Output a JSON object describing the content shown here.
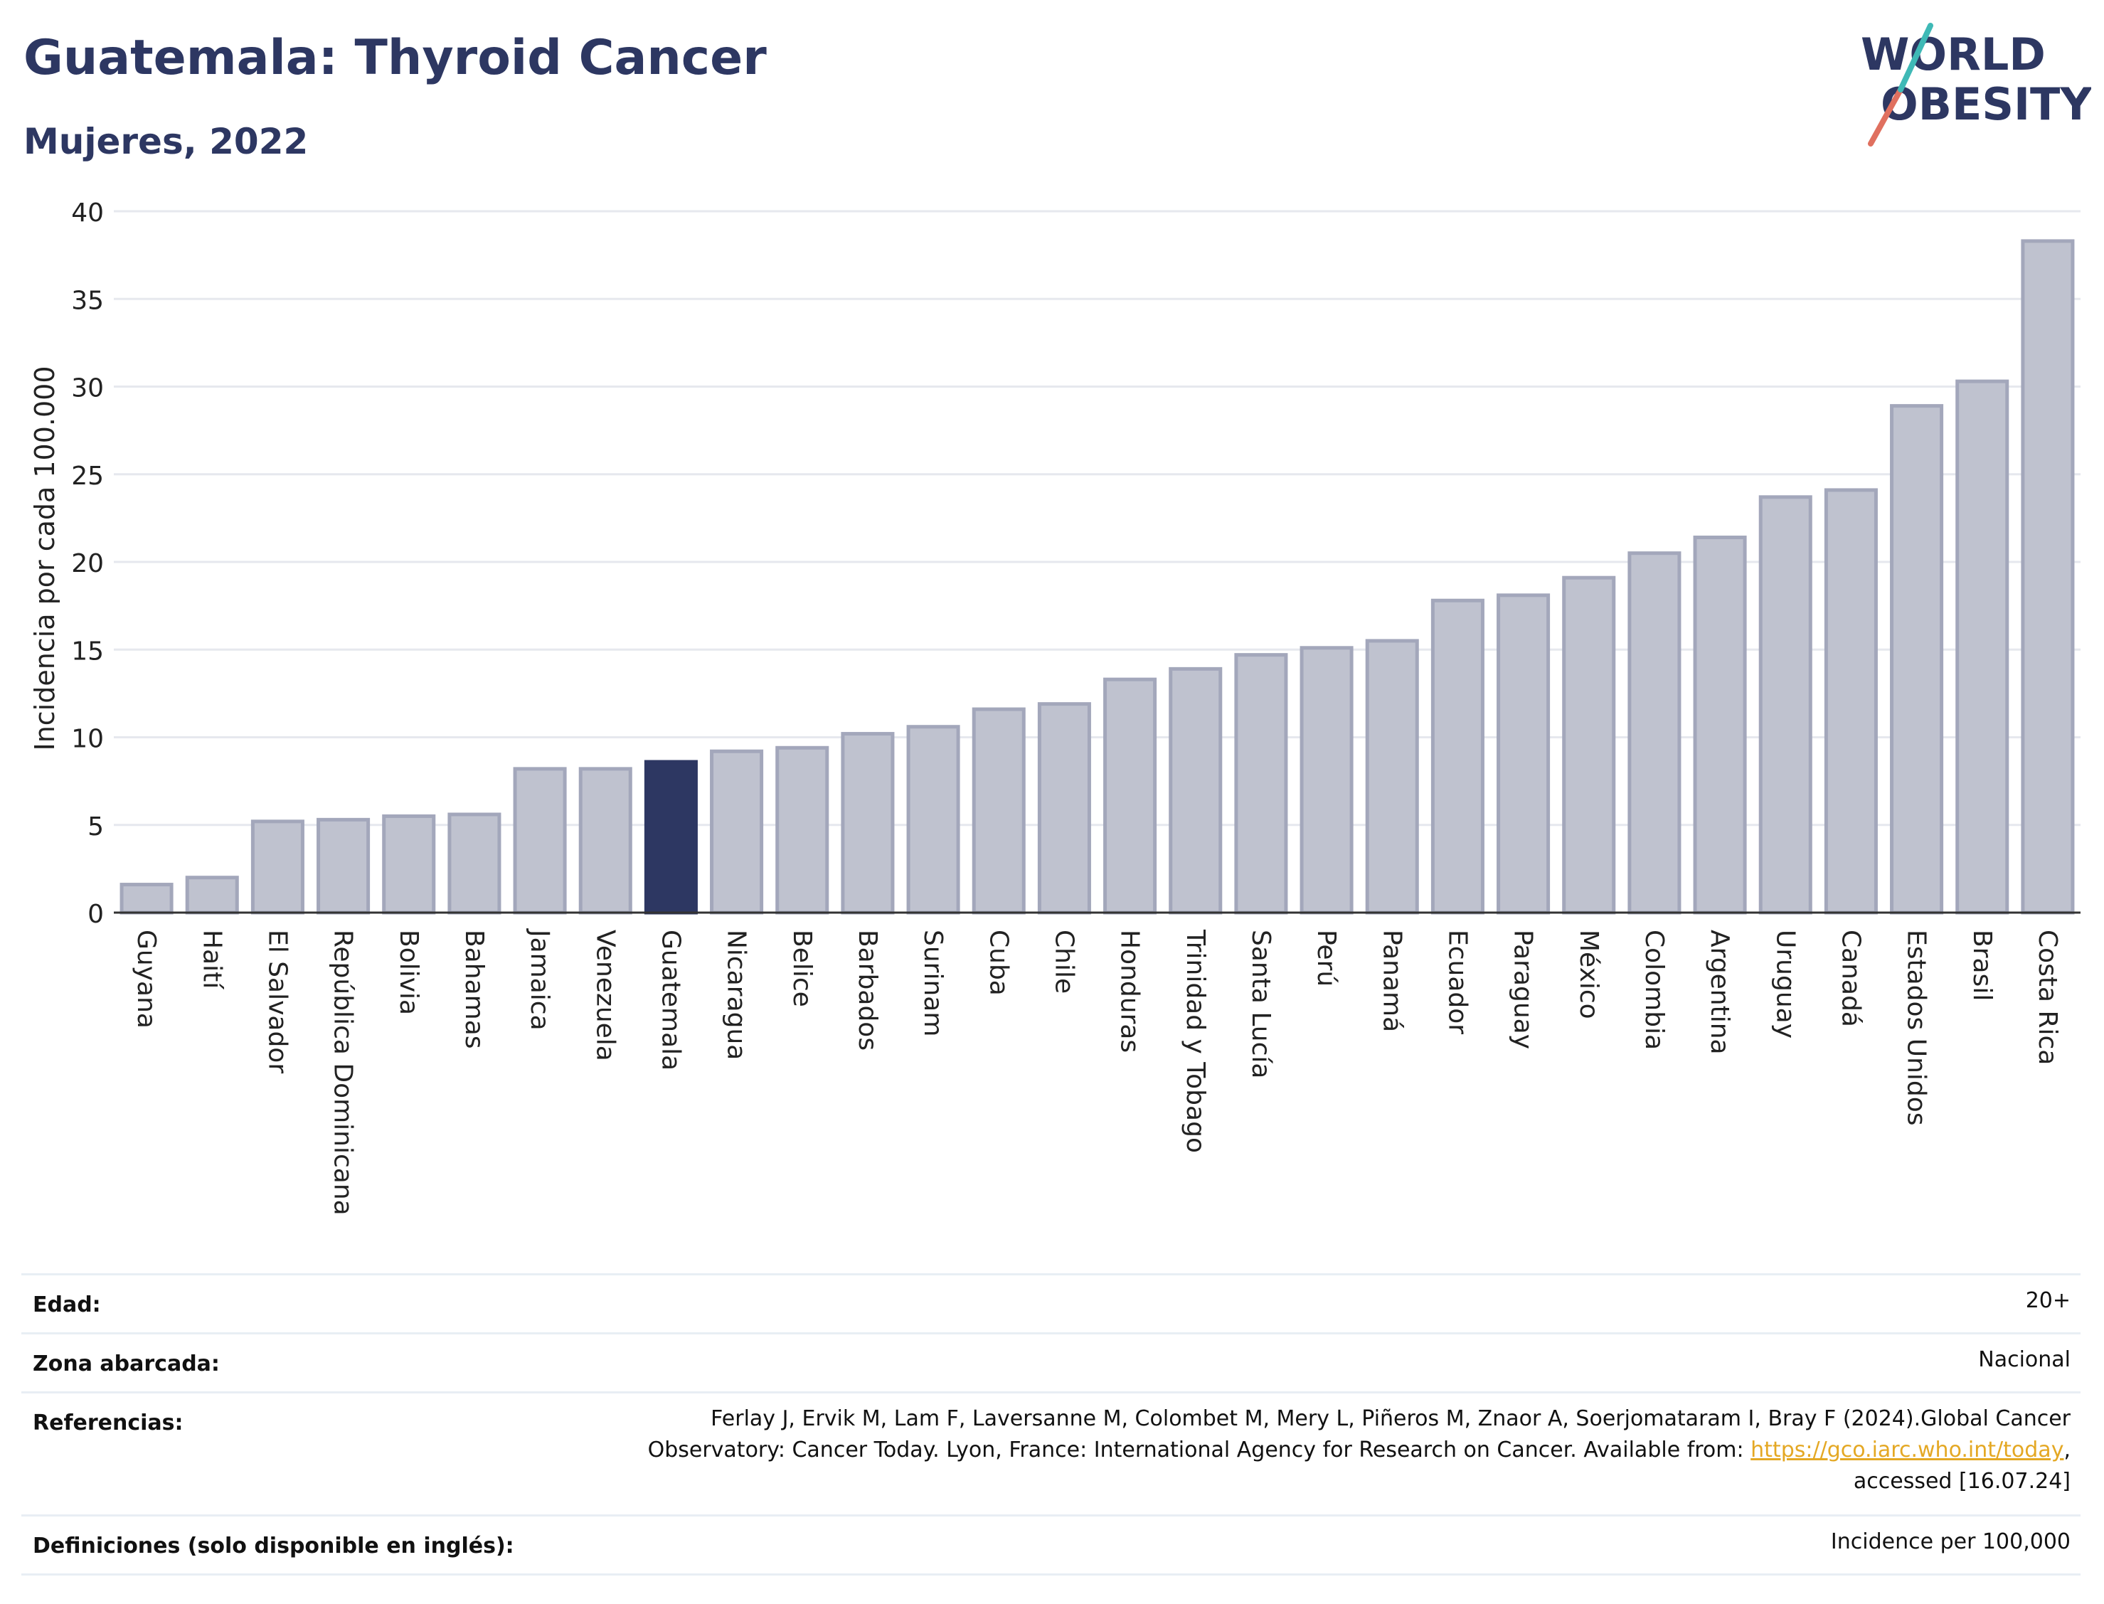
{
  "header": {
    "title": "Guatemala: Thyroid Cancer",
    "subtitle": "Mujeres, 2022",
    "logo_text": [
      "WORLD",
      "OBESITY"
    ]
  },
  "chart_data": {
    "type": "bar",
    "title": "Guatemala: Thyroid Cancer",
    "subtitle": "Mujeres, 2022",
    "ylabel": "Incidencia por cada 100.000",
    "xlabel": "",
    "ylim": [
      0,
      40
    ],
    "yticks": [
      0,
      5,
      10,
      15,
      20,
      25,
      30,
      35,
      40
    ],
    "grid": true,
    "highlight": "Guatemala",
    "colors": {
      "default": "#bfc2cf",
      "default_border": "#a3a7bb",
      "highlight": "#2d3762"
    },
    "categories": [
      "Guyana",
      "Haití",
      "El Salvador",
      "República Dominicana",
      "Bolivia",
      "Bahamas",
      "Jamaica",
      "Venezuela",
      "Guatemala",
      "Nicaragua",
      "Belice",
      "Barbados",
      "Surinam",
      "Cuba",
      "Chile",
      "Honduras",
      "Trinidad y Tobago",
      "Santa Lucía",
      "Perú",
      "Panamá",
      "Ecuador",
      "Paraguay",
      "México",
      "Colombia",
      "Argentina",
      "Uruguay",
      "Canadá",
      "Estados Unidos",
      "Brasil",
      "Costa Rica"
    ],
    "values": [
      1.6,
      2.0,
      5.2,
      5.3,
      5.5,
      5.6,
      8.2,
      8.2,
      8.6,
      9.2,
      9.4,
      10.2,
      10.6,
      11.6,
      11.9,
      13.3,
      13.9,
      14.7,
      15.1,
      15.5,
      17.8,
      18.1,
      19.1,
      20.5,
      21.4,
      23.7,
      24.1,
      28.9,
      30.3,
      38.3
    ]
  },
  "info": {
    "age_label": "Edad:",
    "age_value": "20+",
    "zone_label": "Zona abarcada:",
    "zone_value": "Nacional",
    "ref_label": "Referencias:",
    "ref_line1": "Ferlay J, Ervik M, Lam F, Laversanne M, Colombet M, Mery L, Piñeros M, Znaor A, Soerjomataram I, Bray F (2024).Global Cancer",
    "ref_line2": "Observatory: Cancer Today. Lyon, France: International Agency for Research on Cancer. Available from:",
    "ref_link": "https://gco.iarc.who.int/today",
    "ref_line2_end": ",",
    "ref_line3": "accessed [16.07.24]",
    "def_label": "Definiciones (solo disponible en inglés):",
    "def_value": "Incidence per 100,000"
  }
}
